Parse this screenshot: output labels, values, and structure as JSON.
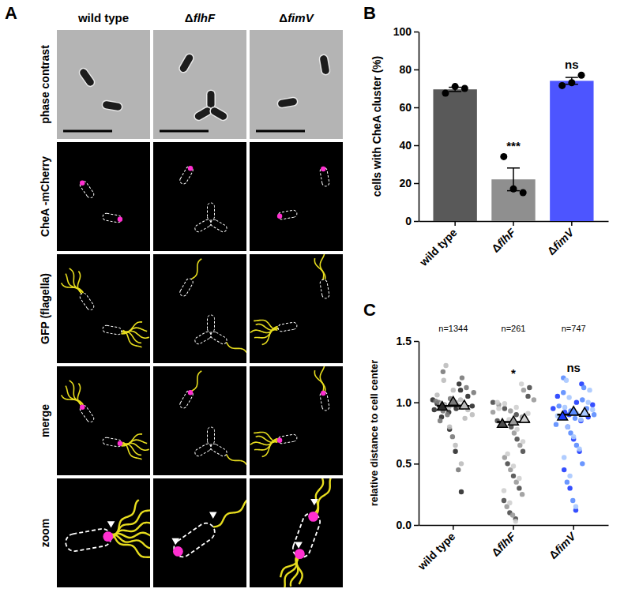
{
  "figure": {
    "panel_a": {
      "label": "A",
      "columns": [
        "wild type",
        "ΔflhF",
        "ΔfimV"
      ],
      "rows": [
        "phase contrast",
        "CheA -mCherry",
        "GFP (flagella)",
        "merge",
        "zoom"
      ]
    }
  },
  "chart_data": [
    {
      "type": "bar",
      "panel_label": "B",
      "ylabel": "cells with CheA cluster (%)",
      "categories": [
        "wild type",
        "ΔflhF",
        "ΔfimV"
      ],
      "values": [
        69.5,
        22,
        74
      ],
      "errors": [
        1.1,
        6,
        1.8
      ],
      "points": [
        [
          67.5,
          71,
          70
        ],
        [
          34,
          17,
          15
        ],
        [
          71.5,
          73,
          77
        ]
      ],
      "colors": [
        "#595959",
        "#8f8f8f",
        "#4d55ff"
      ],
      "ylim": [
        0,
        100
      ],
      "yticks": [
        0,
        20,
        40,
        60,
        80,
        100
      ],
      "annotations": [
        {
          "x": 1,
          "text": "***"
        },
        {
          "x": 2,
          "text": "ns"
        }
      ]
    },
    {
      "type": "scatter",
      "panel_label": "C",
      "ylabel": "relative distance to cell center",
      "categories": [
        "wild type",
        "ΔflhF",
        "ΔfimV"
      ],
      "n_labels": [
        "n=1344",
        "n=261",
        "n=747"
      ],
      "ylim": [
        0,
        1.5
      ],
      "yticks": [
        {
          "value": 0,
          "label": "0.0"
        },
        {
          "value": 0.5,
          "label": "0.5"
        },
        {
          "value": 1,
          "label": "1.0"
        },
        {
          "value": 1.5,
          "label": "1.5"
        }
      ],
      "groups": [
        {
          "mean": 0.97,
          "replicates": [
            {
              "color": "#2b2b2b",
              "mean": 0.96,
              "values": [
                1.02,
                0.98,
                0.95,
                1.05,
                0.99,
                0.92,
                1.1,
                0.97,
                0.88,
                1.0,
                1.15,
                0.94,
                0.78,
                0.6,
                0.27
              ]
            },
            {
              "color": "#7a7a7a",
              "mean": 1.0,
              "values": [
                1.0,
                1.03,
                0.96,
                1.08,
                0.93,
                0.99,
                1.12,
                1.01,
                0.9,
                0.97,
                1.2,
                0.85,
                0.72,
                0.45,
                1.25
              ]
            },
            {
              "color": "#bdbdbd",
              "mean": 0.97,
              "values": [
                0.98,
                1.0,
                0.94,
                1.06,
                0.96,
                1.02,
                0.9,
                0.99,
                1.1,
                0.87,
                1.18,
                0.8,
                0.65,
                0.5,
                1.3
              ]
            }
          ]
        },
        {
          "mean": 0.84,
          "replicates": [
            {
              "color": "#4d4d4d",
              "mean": 0.82,
              "values": [
                1.0,
                0.95,
                0.9,
                1.05,
                0.85,
                0.8,
                0.7,
                0.6,
                0.5,
                0.4,
                0.3,
                0.2,
                0.1,
                0.05,
                1.12
              ]
            },
            {
              "color": "#9a9a9a",
              "mean": 0.84,
              "values": [
                0.98,
                0.93,
                0.88,
                1.02,
                0.83,
                0.75,
                0.65,
                0.55,
                0.45,
                0.35,
                0.25,
                0.15,
                0.08,
                1.1,
                0.92
              ]
            },
            {
              "color": "#cfcfcf",
              "mean": 0.86,
              "values": [
                0.99,
                0.96,
                0.91,
                1.0,
                0.86,
                0.78,
                0.68,
                0.58,
                0.48,
                0.38,
                0.28,
                0.18,
                0.03,
                1.15,
                0.95
              ]
            }
          ]
        },
        {
          "mean": 0.9,
          "replicates": [
            {
              "color": "#1f3cff",
              "mean": 0.88,
              "values": [
                0.95,
                0.92,
                1.0,
                0.88,
                1.05,
                0.9,
                0.85,
                0.98,
                0.8,
                0.7,
                0.6,
                0.45,
                0.3,
                0.12,
                1.15
              ]
            },
            {
              "color": "#5b8cff",
              "mean": 0.92,
              "values": [
                0.97,
                0.93,
                1.02,
                0.9,
                1.08,
                0.87,
                0.95,
                0.82,
                0.75,
                0.65,
                0.5,
                0.35,
                0.2,
                1.12,
                1.2
              ]
            },
            {
              "color": "#a8c8ff",
              "mean": 0.91,
              "values": [
                0.96,
                0.91,
                1.0,
                0.89,
                1.04,
                0.86,
                0.94,
                0.8,
                0.72,
                0.62,
                0.55,
                0.4,
                0.15,
                1.1,
                1.18
              ]
            }
          ]
        }
      ],
      "annotations": [
        {
          "x": 1,
          "text": "*"
        },
        {
          "x": 2,
          "text": "ns"
        }
      ]
    }
  ]
}
